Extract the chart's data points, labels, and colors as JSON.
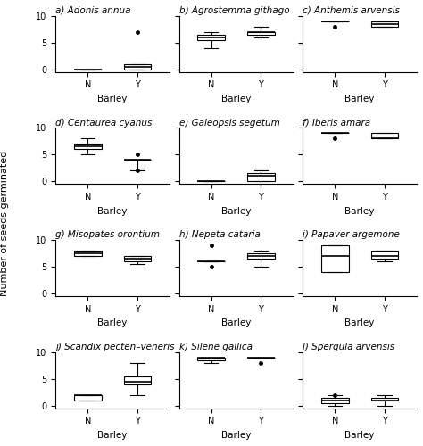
{
  "subplots": [
    {
      "label": "a) Adonis annua",
      "N": {
        "whislo": 0,
        "q1": 0,
        "med": 0,
        "q3": 0,
        "whishi": 0,
        "fliers": []
      },
      "Y": {
        "whislo": 0,
        "q1": 0,
        "med": 0.5,
        "q3": 1,
        "whishi": 1,
        "fliers": [
          7
        ]
      }
    },
    {
      "label": "b) Agrostemma githago",
      "N": {
        "whislo": 4,
        "q1": 5.5,
        "med": 6,
        "q3": 6.5,
        "whishi": 7,
        "fliers": []
      },
      "Y": {
        "whislo": 6,
        "q1": 6.5,
        "med": 7,
        "q3": 7,
        "whishi": 8,
        "fliers": []
      }
    },
    {
      "label": "c) Anthemis arvensis",
      "N": {
        "whislo": 9,
        "q1": 9,
        "med": 9,
        "q3": 9,
        "whishi": 9,
        "fliers": [
          8
        ]
      },
      "Y": {
        "whislo": 8,
        "q1": 8,
        "med": 8.5,
        "q3": 9,
        "whishi": 9,
        "fliers": []
      }
    },
    {
      "label": "d) Centaurea cyanus",
      "N": {
        "whislo": 5,
        "q1": 6,
        "med": 6.5,
        "q3": 7,
        "whishi": 8,
        "fliers": []
      },
      "Y": {
        "whislo": 2,
        "q1": 4,
        "med": 4,
        "q3": 4,
        "whishi": 4,
        "fliers": [
          5,
          2
        ]
      }
    },
    {
      "label": "e) Galeopsis segetum",
      "N": {
        "whislo": 0,
        "q1": 0,
        "med": 0,
        "q3": 0,
        "whishi": 0,
        "fliers": []
      },
      "Y": {
        "whislo": 0,
        "q1": 0,
        "med": 1,
        "q3": 1.5,
        "whishi": 2,
        "fliers": []
      }
    },
    {
      "label": "f) Iberis amara",
      "N": {
        "whislo": 9,
        "q1": 9,
        "med": 9,
        "q3": 9,
        "whishi": 9,
        "fliers": [
          8
        ]
      },
      "Y": {
        "whislo": 8,
        "q1": 8,
        "med": 8,
        "q3": 9,
        "whishi": 9,
        "fliers": []
      }
    },
    {
      "label": "g) Misopates orontium",
      "N": {
        "whislo": 7,
        "q1": 7,
        "med": 7.5,
        "q3": 8,
        "whishi": 8,
        "fliers": []
      },
      "Y": {
        "whislo": 5.5,
        "q1": 6,
        "med": 6.5,
        "q3": 7,
        "whishi": 7,
        "fliers": []
      }
    },
    {
      "label": "h) Nepeta cataria",
      "N": {
        "whislo": 6,
        "q1": 6,
        "med": 6,
        "q3": 6,
        "whishi": 6,
        "fliers": [
          9,
          5
        ]
      },
      "Y": {
        "whislo": 5,
        "q1": 6.5,
        "med": 7,
        "q3": 7.5,
        "whishi": 8,
        "fliers": []
      }
    },
    {
      "label": "i) Papaver argemone",
      "N": {
        "whislo": 4,
        "q1": 4,
        "med": 7,
        "q3": 9,
        "whishi": 9,
        "fliers": []
      },
      "Y": {
        "whislo": 6,
        "q1": 6.5,
        "med": 7,
        "q3": 8,
        "whishi": 8,
        "fliers": []
      }
    },
    {
      "label": "j) Scandix pecten–veneris",
      "N": {
        "whislo": 1,
        "q1": 1,
        "med": 2,
        "q3": 2,
        "whishi": 2,
        "fliers": []
      },
      "Y": {
        "whislo": 2,
        "q1": 4,
        "med": 4.5,
        "q3": 5.5,
        "whishi": 8,
        "fliers": []
      }
    },
    {
      "label": "k) Silene gallica",
      "N": {
        "whislo": 8,
        "q1": 8.5,
        "med": 9,
        "q3": 9,
        "whishi": 9,
        "fliers": []
      },
      "Y": {
        "whislo": 9,
        "q1": 9,
        "med": 9,
        "q3": 9,
        "whishi": 9,
        "fliers": [
          8
        ]
      }
    },
    {
      "label": "l) Spergula arvensis",
      "N": {
        "whislo": 0,
        "q1": 0.5,
        "med": 1,
        "q3": 1.5,
        "whishi": 2,
        "fliers": [
          2
        ]
      },
      "Y": {
        "whislo": 0,
        "q1": 1,
        "med": 1,
        "q3": 1.5,
        "whishi": 2,
        "fliers": []
      }
    }
  ],
  "ylabel": "Number of seeds germinated",
  "xlabel": "Barley",
  "ylim": [
    -0.5,
    10
  ],
  "yticks": [
    0,
    5,
    10
  ],
  "xticks": [
    "N",
    "Y"
  ],
  "figsize": [
    4.74,
    5.0
  ],
  "dpi": 100,
  "box_color": "white",
  "median_color": "black",
  "whisker_color": "black",
  "flier_color": "black",
  "flier_marker": ".",
  "flier_size": 5
}
